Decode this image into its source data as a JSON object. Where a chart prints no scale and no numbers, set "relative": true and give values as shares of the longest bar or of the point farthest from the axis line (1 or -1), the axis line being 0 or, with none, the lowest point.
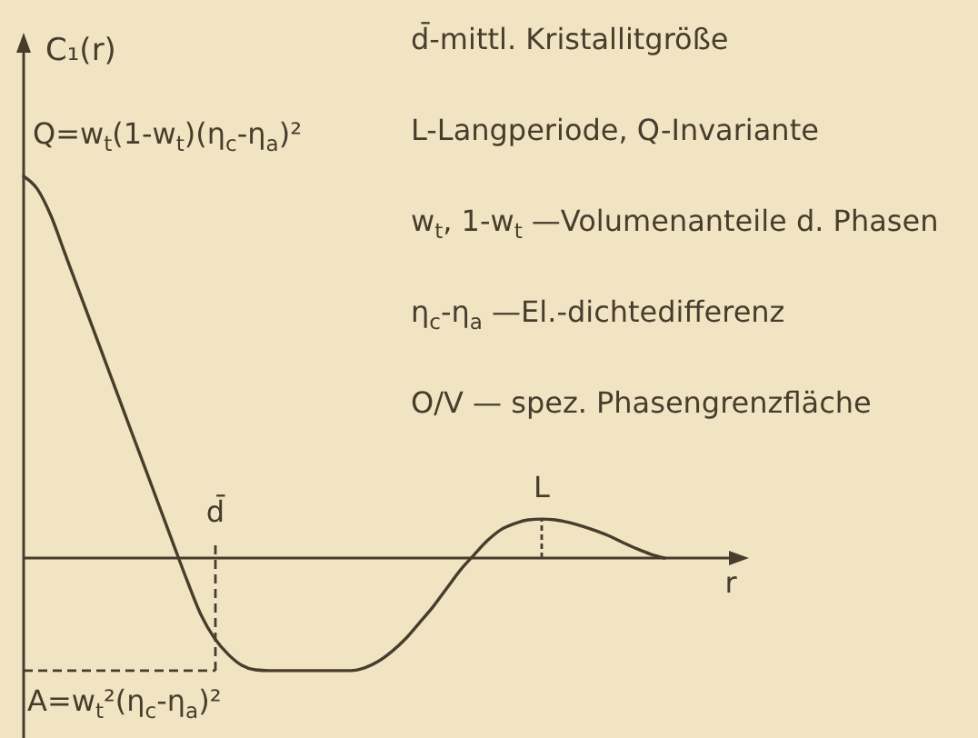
{
  "chart_data": {
    "type": "line",
    "relative": true,
    "xlabel": "r",
    "ylabel": "C₁(r)",
    "color": "#4a3c2c",
    "categories": [
      null,
      null,
      null,
      null,
      null,
      null,
      null,
      null,
      null,
      null,
      null,
      null,
      null,
      null,
      null,
      null,
      null,
      null,
      null,
      null,
      null,
      null,
      null,
      null,
      null,
      null,
      null,
      null,
      null,
      null,
      null,
      null,
      null,
      null,
      null,
      null,
      null,
      null,
      null,
      null,
      null,
      null,
      null,
      null,
      null,
      null,
      null,
      null
    ],
    "values": [
      1,
      0.967,
      0.897,
      0.801,
      0.705,
      0.61,
      0.514,
      0.418,
      0.322,
      0.227,
      0.131,
      0.035,
      -0.06,
      -0.148,
      -0.21,
      -0.252,
      -0.281,
      -0.293,
      -0.295,
      -0.295,
      -0.295,
      -0.295,
      -0.295,
      -0.295,
      -0.295,
      -0.288,
      -0.271,
      -0.245,
      -0.212,
      -0.171,
      -0.129,
      -0.081,
      -0.033,
      0.007,
      0.045,
      0.074,
      0.09,
      0.1,
      0.102,
      0.1,
      0.093,
      0.083,
      0.071,
      0.057,
      0.04,
      0.024,
      0.01,
      0
    ],
    "annotations": [
      "d̄-mittl. Kristallitgröße",
      "L-Langperiode, Q-Invariante",
      "w$_{t}$, 1-w$_{t}$ —Volumenanteile d. Phasen",
      "η$_{c}$-η$_{a}$ —El.-dichtedifferenz",
      "O/V — spez. Phasengrenzfläche",
      "Q=w$_{t}$(1-w$_{t}$)(η$_{c}$-η$_{a}$)²",
      "d̄",
      "L"
    ],
    "ref_lines": [
      {
        "axis": "y",
        "value": -0.295,
        "label": "A=w$_{t}$²(η$_{c}$-η$_{a}$)²",
        "line_style": "dashed"
      }
    ]
  }
}
